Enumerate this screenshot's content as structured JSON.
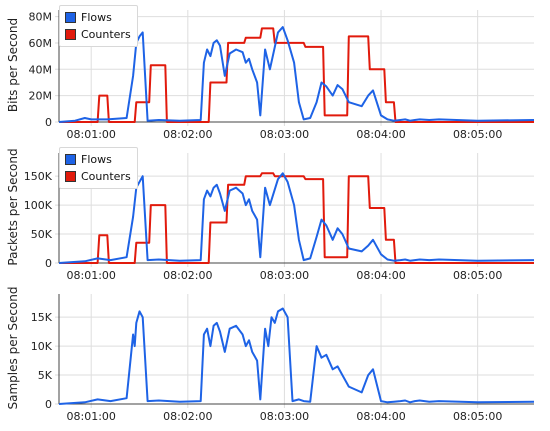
{
  "colors": {
    "flows": "#1e63e6",
    "counters": "#e11a0c",
    "grid": "#dedede"
  },
  "chart_data": [
    {
      "type": "line",
      "ylabel": "Bits per Second",
      "ylim": [
        0,
        85000000
      ],
      "yticks": [
        0,
        20000000,
        40000000,
        60000000,
        80000000
      ],
      "ytick_labels": [
        "0",
        "20M",
        "40M",
        "60M",
        "80M"
      ],
      "xlim": [
        40,
        335
      ],
      "xticks": [
        60,
        120,
        180,
        240,
        300
      ],
      "xtick_labels": [
        "08:01:00",
        "08:02:00",
        "08:03:00",
        "08:04:00",
        "08:05:00"
      ],
      "legend": "top-left",
      "series": [
        {
          "name": "Flows",
          "color": "#1e63e6",
          "x": [
            40,
            50,
            56,
            60,
            70,
            82,
            86,
            88,
            90,
            92,
            95,
            102,
            115,
            128,
            130,
            132,
            134,
            136,
            138,
            140,
            143,
            146,
            150,
            154,
            156,
            158,
            160,
            163,
            165,
            168,
            171,
            176,
            179,
            182,
            186,
            189,
            192,
            196,
            200,
            203,
            206,
            210,
            213,
            216,
            220,
            228,
            232,
            235,
            240,
            244,
            248,
            252,
            255,
            258,
            261,
            264,
            270,
            276,
            300,
            335
          ],
          "y": [
            0,
            1000000,
            3000000,
            2000000,
            2000000,
            3000000,
            35000000,
            60000000,
            65000000,
            68000000,
            1000000,
            1500000,
            1000000,
            1500000,
            45000000,
            55000000,
            50000000,
            60000000,
            62000000,
            58000000,
            35000000,
            52000000,
            55000000,
            53000000,
            45000000,
            48000000,
            40000000,
            30000000,
            5000000,
            55000000,
            40000000,
            68000000,
            72000000,
            62000000,
            45000000,
            15000000,
            2000000,
            3000000,
            15000000,
            30000000,
            27000000,
            20000000,
            28000000,
            25000000,
            15000000,
            12000000,
            20000000,
            24000000,
            5000000,
            2000000,
            1000000,
            1500000,
            2000000,
            1000000,
            1500000,
            2000000,
            1500000,
            2000000,
            1000000,
            1500000
          ]
        },
        {
          "name": "Counters",
          "color": "#e11a0c",
          "x": [
            40,
            64,
            65,
            70,
            71,
            87,
            88,
            96,
            97,
            106,
            107,
            133,
            134,
            144,
            145,
            155,
            156,
            165,
            166,
            173,
            174,
            192,
            193,
            204,
            205,
            219,
            220,
            232,
            233,
            242,
            243,
            248,
            249,
            335
          ],
          "y": [
            0,
            0,
            20000000,
            20000000,
            0,
            0,
            15000000,
            15000000,
            43000000,
            43000000,
            0,
            0,
            30000000,
            30000000,
            60000000,
            60000000,
            64000000,
            64000000,
            71000000,
            71000000,
            60000000,
            60000000,
            57000000,
            57000000,
            5000000,
            5000000,
            65000000,
            65000000,
            40000000,
            40000000,
            15000000,
            15000000,
            0,
            0
          ]
        }
      ]
    },
    {
      "type": "line",
      "ylabel": "Packets per Second",
      "ylim": [
        0,
        190000
      ],
      "yticks": [
        0,
        50000,
        100000,
        150000
      ],
      "ytick_labels": [
        "0",
        "50K",
        "100K",
        "150K"
      ],
      "xlim": [
        40,
        335
      ],
      "xticks": [
        60,
        120,
        180,
        240,
        300
      ],
      "xtick_labels": [
        "08:01:00",
        "08:02:00",
        "08:03:00",
        "08:04:00",
        "08:05:00"
      ],
      "legend": "top-left",
      "series": [
        {
          "name": "Flows",
          "color": "#1e63e6",
          "x": [
            40,
            56,
            64,
            72,
            82,
            86,
            88,
            90,
            92,
            95,
            102,
            115,
            128,
            130,
            132,
            134,
            136,
            138,
            140,
            143,
            146,
            150,
            154,
            156,
            158,
            160,
            163,
            165,
            168,
            171,
            176,
            179,
            182,
            186,
            189,
            192,
            196,
            200,
            203,
            206,
            210,
            213,
            216,
            220,
            228,
            232,
            235,
            240,
            244,
            248,
            252,
            255,
            258,
            261,
            264,
            270,
            276,
            300,
            335
          ],
          "y": [
            0,
            3000,
            8000,
            5000,
            10000,
            80000,
            130000,
            140000,
            150000,
            5000,
            6000,
            4000,
            5000,
            110000,
            125000,
            115000,
            130000,
            135000,
            120000,
            90000,
            125000,
            130000,
            120000,
            100000,
            110000,
            90000,
            75000,
            10000,
            130000,
            100000,
            145000,
            155000,
            140000,
            100000,
            40000,
            5000,
            8000,
            45000,
            75000,
            65000,
            40000,
            60000,
            50000,
            25000,
            20000,
            30000,
            40000,
            15000,
            6000,
            4000,
            5000,
            6000,
            4000,
            5000,
            6000,
            5000,
            6000,
            4000,
            5000
          ]
        },
        {
          "name": "Counters",
          "color": "#e11a0c",
          "x": [
            40,
            64,
            65,
            70,
            71,
            87,
            88,
            96,
            97,
            106,
            107,
            133,
            134,
            144,
            145,
            155,
            156,
            165,
            166,
            173,
            174,
            192,
            193,
            204,
            205,
            219,
            220,
            232,
            233,
            242,
            243,
            248,
            249,
            335
          ],
          "y": [
            0,
            0,
            48000,
            48000,
            0,
            0,
            35000,
            35000,
            100000,
            100000,
            0,
            0,
            70000,
            70000,
            135000,
            135000,
            150000,
            150000,
            155000,
            155000,
            150000,
            150000,
            145000,
            145000,
            10000,
            10000,
            150000,
            150000,
            95000,
            95000,
            40000,
            40000,
            0,
            0
          ]
        }
      ]
    },
    {
      "type": "line",
      "ylabel": "Samples per Second",
      "ylim": [
        0,
        19000
      ],
      "yticks": [
        0,
        5000,
        10000,
        15000
      ],
      "ytick_labels": [
        "0",
        "5K",
        "10K",
        "15K"
      ],
      "xlim": [
        40,
        335
      ],
      "xticks": [
        60,
        120,
        180,
        240,
        300
      ],
      "xtick_labels": [
        "08:01:00",
        "08:02:00",
        "08:03:00",
        "08:04:00",
        "08:05:00"
      ],
      "legend": "none",
      "series": [
        {
          "name": "Flows",
          "color": "#1e63e6",
          "x": [
            40,
            56,
            64,
            72,
            82,
            86,
            87,
            88,
            89,
            90,
            92,
            95,
            102,
            115,
            128,
            130,
            132,
            134,
            136,
            138,
            140,
            143,
            146,
            150,
            154,
            156,
            158,
            160,
            163,
            165,
            168,
            170,
            172,
            174,
            176,
            179,
            182,
            185,
            189,
            192,
            196,
            200,
            203,
            206,
            210,
            213,
            216,
            220,
            228,
            232,
            235,
            240,
            244,
            248,
            252,
            255,
            258,
            261,
            264,
            270,
            276,
            300,
            335
          ],
          "y": [
            0,
            300,
            800,
            500,
            1000,
            12000,
            10000,
            14000,
            15000,
            16000,
            15000,
            500,
            600,
            400,
            500,
            12000,
            13000,
            10000,
            13500,
            14000,
            12500,
            9000,
            13000,
            13500,
            12000,
            10000,
            11000,
            9000,
            7500,
            800,
            13000,
            10000,
            15000,
            14000,
            16000,
            16500,
            15000,
            500,
            800,
            500,
            400,
            10000,
            8000,
            8500,
            6000,
            6500,
            5000,
            3000,
            2000,
            5000,
            6000,
            500,
            300,
            400,
            500,
            600,
            300,
            500,
            600,
            400,
            500,
            300,
            400
          ]
        }
      ]
    }
  ]
}
